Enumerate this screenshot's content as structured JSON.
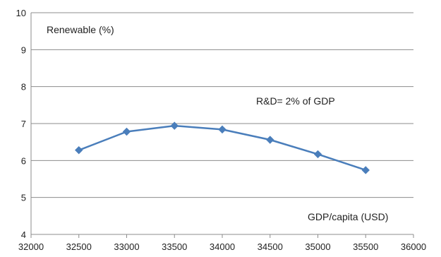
{
  "chart_data": {
    "type": "line",
    "title": "",
    "xlabel": "GDP/capita (USD)",
    "ylabel": "Renewable (%)",
    "annotation": "R&D= 2% of GDP",
    "xlim": [
      32000,
      36000
    ],
    "ylim": [
      4,
      10
    ],
    "x_ticks": [
      32000,
      32500,
      33000,
      33500,
      34000,
      34500,
      35000,
      35500,
      36000
    ],
    "y_ticks": [
      4,
      5,
      6,
      7,
      8,
      9,
      10
    ],
    "grid": "horizontal",
    "line_color": "#4a7ebb",
    "series": [
      {
        "x": [
          32500,
          33000,
          33500,
          34000,
          34500,
          35000,
          35500
        ],
        "values": [
          6.28,
          6.78,
          6.94,
          6.84,
          6.56,
          6.17,
          5.74
        ]
      }
    ]
  }
}
